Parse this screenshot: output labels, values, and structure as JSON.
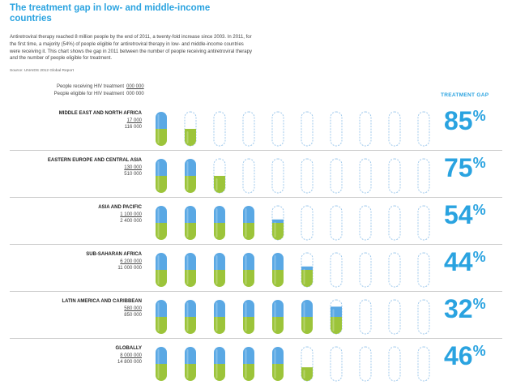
{
  "page": {
    "title": "The treatment gap in low- and middle-income countries",
    "intro": "Antiretroviral therapy reached 8 million people by the end of 2011, a twenty-fold increase since 2003. In 2011, for the first time, a majority (54%) of people eligible for antiretroviral therapy in low- and middle-income countries were receiving it. This chart shows the gap in 2011 between the number of people receiving antiretroviral therapy and the number of people eligible for treatment.",
    "source": "Source: UNAIDS 2012 Global Report",
    "legend": {
      "receiving_label": "People receiving HIV treatment",
      "receiving_value": "000 000",
      "eligible_label": "People eligible for HIV treatment",
      "eligible_value": "000 000"
    },
    "gap_header": "TREATMENT GAP"
  },
  "colors": {
    "blue": "#5aa8e4",
    "green": "#9cc43a",
    "outline": "#9fc9ec",
    "accent": "#2aa3e0"
  },
  "chart_data": {
    "type": "pictograph",
    "pills_per_row": 10,
    "regions": [
      {
        "name": "MIDDLE EAST AND NORTH AFRICA",
        "receiving": "17 000",
        "eligible": "116 000",
        "treatment_gap": "85",
        "filled_pills": 1.5
      },
      {
        "name": "EASTERN EUROPE AND CENTRAL ASIA",
        "receiving": "130 000",
        "eligible": "510 000",
        "treatment_gap": "75",
        "filled_pills": 2.5
      },
      {
        "name": "ASIA AND PACIFIC",
        "receiving": "1 100 000",
        "eligible": "2 400 000",
        "treatment_gap": "54",
        "filled_pills": 4.6
      },
      {
        "name": "SUB-SAHARAN AFRICA",
        "receiving": "6 200 000",
        "eligible": "11 000 000",
        "treatment_gap": "44",
        "filled_pills": 5.6
      },
      {
        "name": "LATIN AMERICA AND CARIBBEAN",
        "receiving": "580 000",
        "eligible": "850 000",
        "treatment_gap": "32",
        "filled_pills": 6.8
      },
      {
        "name": "GLOBALLY",
        "receiving": "8 000 000",
        "eligible": "14 800 000",
        "treatment_gap": "46",
        "filled_pills": 5.4
      }
    ]
  }
}
